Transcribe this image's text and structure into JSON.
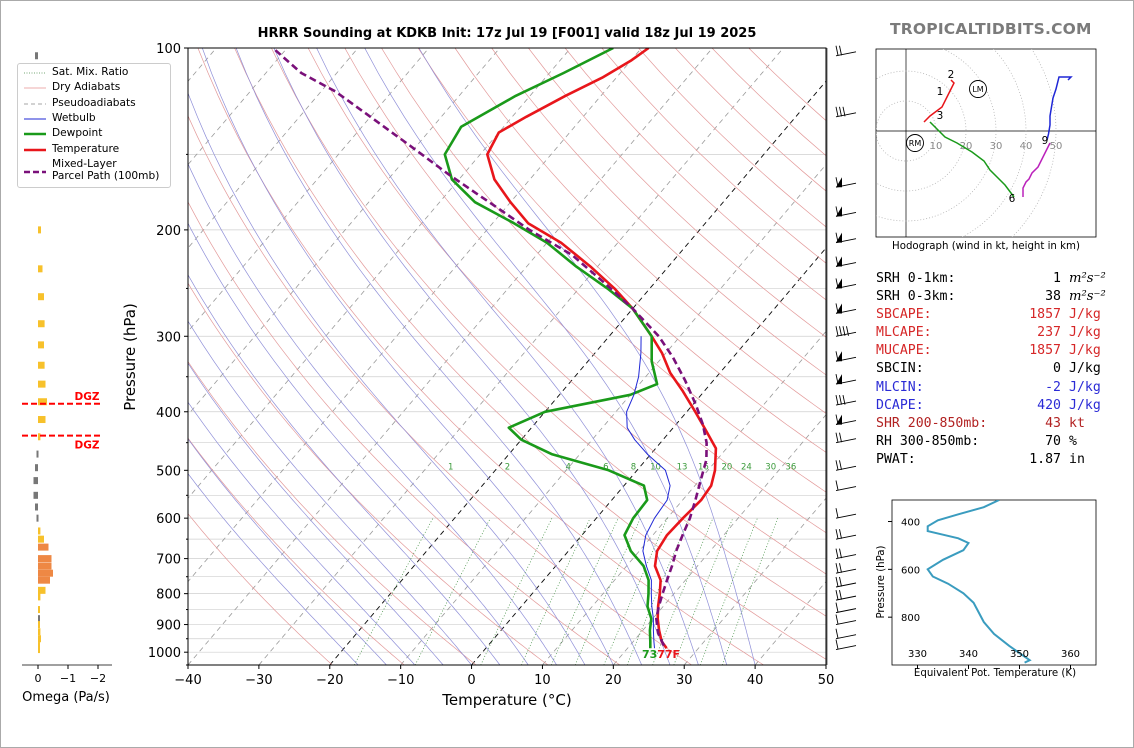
{
  "title": "HRRR Sounding at KDKB Init: 17z Jul 19 [F001] valid 18z Jul 19 2025",
  "watermark": "TROPICALTIDBITS.COM",
  "colors": {
    "temperature": "#e8161b",
    "dewpoint": "#1a9a1a",
    "wetbulb": "#1f27d6",
    "parcel": "#7a107a",
    "omega_pos": "#f7c12b",
    "omega_neg": "#777777",
    "omega_strong": "#ee8844",
    "dgz": "#ff0000",
    "theta_e": "#3a9cbf",
    "hodo_0_3": "#e8161b",
    "hodo_3_6": "#1a9a1a",
    "hodo_6_9": "#1f27d6",
    "hodo_9_12": "#bb22bb"
  },
  "skewt": {
    "xlabel": "Temperature (°C)",
    "ylabel": "Pressure (hPa)",
    "x_ticks": [
      -40,
      -30,
      -20,
      -10,
      0,
      10,
      20,
      30,
      40,
      50
    ],
    "x_tick_labels": [
      "−40",
      "−30",
      "−20",
      "−10",
      "0",
      "10",
      "20",
      "30",
      "40",
      "50"
    ],
    "y_ticks": [
      100,
      200,
      300,
      400,
      500,
      600,
      700,
      800,
      900,
      1000
    ],
    "y_tick_labels": [
      "100",
      "200",
      "300",
      "400",
      "500",
      "600",
      "700",
      "800",
      "900",
      "1000"
    ],
    "mixing_ratio_labels": [
      "1",
      "2",
      "4",
      "6",
      "8",
      "10",
      "13",
      "16",
      "20",
      "24",
      "30",
      "36"
    ],
    "surface_label": "73 77F"
  },
  "legend": {
    "items": [
      "Sat. Mix. Ratio",
      "Dry Adiabats",
      "Pseudoadiabats",
      "Wetbulb",
      "Dewpoint",
      "Temperature",
      "Mixed-Layer\nParcel Path (100mb)"
    ]
  },
  "omega": {
    "xlabel": "Omega (Pa/s)",
    "x_tick_labels": [
      "0",
      "−1",
      "−2"
    ],
    "dgz_label_top": "DGZ",
    "dgz_label_bottom": "DGZ"
  },
  "hodograph": {
    "caption": "Hodograph (wind in kt, height in km)",
    "ring_labels": [
      "10",
      "20",
      "30",
      "40",
      "50"
    ],
    "height_labels": [
      "1",
      "2",
      "3",
      "6",
      "9"
    ],
    "storm_motion_labels": [
      "RM",
      "LM"
    ]
  },
  "indices": [
    {
      "label": "SRH 0-1km:",
      "value": "1",
      "unit": "m²s⁻²",
      "color": "#000000"
    },
    {
      "label": "SRH 0-3km:",
      "value": "38",
      "unit": "m²s⁻²",
      "color": "#000000"
    },
    {
      "label": "SBCAPE:",
      "value": "1857",
      "unit": "J/kg",
      "color": "#d62728"
    },
    {
      "label": "MLCAPE:",
      "value": "237",
      "unit": "J/kg",
      "color": "#d62728"
    },
    {
      "label": "MUCAPE:",
      "value": "1857",
      "unit": "J/kg",
      "color": "#d62728"
    },
    {
      "label": "SBCIN:",
      "value": "0",
      "unit": "J/kg",
      "color": "#000000"
    },
    {
      "label": "MLCIN:",
      "value": "-2",
      "unit": "J/kg",
      "color": "#2b2bd6"
    },
    {
      "label": "DCAPE:",
      "value": "420",
      "unit": "J/kg",
      "color": "#2b2bd6"
    },
    {
      "label": "SHR 200-850mb:",
      "value": "43",
      "unit": "kt",
      "color": "#b22222"
    },
    {
      "label": "RH 300-850mb:",
      "value": "70",
      "unit": "%",
      "color": "#000000"
    },
    {
      "label": "PWAT:",
      "value": "1.87",
      "unit": "in",
      "color": "#000000"
    }
  ],
  "theta_e_panel": {
    "xlabel": "Equivalent Pot. Temperature (K)",
    "ylabel": "Pressure (hPa)",
    "x_tick_labels": [
      "330",
      "340",
      "350",
      "360"
    ],
    "y_tick_labels": [
      "400",
      "600",
      "800"
    ]
  },
  "chart_data": [
    {
      "type": "line",
      "name": "skew-t",
      "title": "HRRR Sounding at KDKB Init: 17z Jul 19 [F001] valid 18z Jul 19 2025",
      "xlabel": "Temperature (°C)",
      "ylabel": "Pressure (hPa)",
      "xlim": [
        -40,
        50
      ],
      "ylim": [
        1050,
        100
      ],
      "y_scale": "log",
      "series": [
        {
          "name": "Temperature",
          "points": [
            [
              25.5,
              985
            ],
            [
              24,
              960
            ],
            [
              22.3,
              920
            ],
            [
              20.7,
              880
            ],
            [
              19.3,
              840
            ],
            [
              18,
              800
            ],
            [
              16.5,
              760
            ],
            [
              14,
              720
            ],
            [
              12.5,
              680
            ],
            [
              12,
              640
            ],
            [
              12.2,
              600
            ],
            [
              12.6,
              560
            ],
            [
              12.3,
              530
            ],
            [
              11,
              500
            ],
            [
              8.5,
              460
            ],
            [
              5,
              430
            ],
            [
              1.2,
              400
            ],
            [
              -3,
              370
            ],
            [
              -7,
              345
            ],
            [
              -10.5,
              320
            ],
            [
              -14,
              300
            ],
            [
              -20,
              270
            ],
            [
              -25,
              250
            ],
            [
              -31,
              230
            ],
            [
              -38,
              210
            ],
            [
              -45,
              195
            ],
            [
              -50,
              180
            ],
            [
              -55,
              165
            ],
            [
              -59,
              150
            ],
            [
              -60,
              138
            ],
            [
              -58,
              130
            ],
            [
              -55,
              120
            ],
            [
              -52,
              112
            ],
            [
              -50,
              105
            ],
            [
              -49,
              100
            ]
          ]
        },
        {
          "name": "Dewpoint",
          "points": [
            [
              23.2,
              985
            ],
            [
              22.4,
              960
            ],
            [
              21,
              920
            ],
            [
              19.8,
              880
            ],
            [
              17.8,
              840
            ],
            [
              16.4,
              800
            ],
            [
              14.8,
              760
            ],
            [
              12.4,
              720
            ],
            [
              8.8,
              680
            ],
            [
              6,
              640
            ],
            [
              5.2,
              600
            ],
            [
              5,
              560
            ],
            [
              2.8,
              530
            ],
            [
              -4,
              500
            ],
            [
              -14,
              470
            ],
            [
              -20,
              445
            ],
            [
              -23.2,
              425
            ],
            [
              -20,
              400
            ],
            [
              -10,
              375
            ],
            [
              -7.5,
              360
            ],
            [
              -11,
              330
            ],
            [
              -14,
              300
            ],
            [
              -20,
              270
            ],
            [
              -26,
              250
            ],
            [
              -33,
              230
            ],
            [
              -40,
              210
            ],
            [
              -47,
              195
            ],
            [
              -55,
              180
            ],
            [
              -61,
              165
            ],
            [
              -65,
              150
            ],
            [
              -66,
              135
            ],
            [
              -62,
              120
            ],
            [
              -58,
              110
            ],
            [
              -54,
              100
            ]
          ]
        },
        {
          "name": "Wetbulb",
          "points": [
            [
              23.8,
              985
            ],
            [
              22.9,
              960
            ],
            [
              21.5,
              920
            ],
            [
              20.1,
              880
            ],
            [
              18.4,
              840
            ],
            [
              16.8,
              800
            ],
            [
              15.2,
              760
            ],
            [
              12.8,
              720
            ],
            [
              10.5,
              680
            ],
            [
              9,
              640
            ],
            [
              8.2,
              600
            ],
            [
              7.8,
              560
            ],
            [
              6.5,
              530
            ],
            [
              4,
              500
            ],
            [
              -0.5,
              470
            ],
            [
              -4,
              445
            ],
            [
              -6.5,
              425
            ],
            [
              -8.5,
              400
            ],
            [
              -9.5,
              375
            ],
            [
              -11,
              350
            ],
            [
              -13.5,
              320
            ],
            [
              -15.5,
              300
            ]
          ]
        },
        {
          "name": "Mixed-Layer Parcel Path (100mb)",
          "points": [
            [
              24.8,
              975
            ],
            [
              22.5,
              930
            ],
            [
              20.5,
              880
            ],
            [
              19.4,
              840
            ],
            [
              18.4,
              800
            ],
            [
              17.4,
              760
            ],
            [
              16.4,
              720
            ],
            [
              15.2,
              680
            ],
            [
              14.2,
              640
            ],
            [
              13.2,
              600
            ],
            [
              11.8,
              560
            ],
            [
              10.2,
              520
            ],
            [
              8.5,
              480
            ],
            [
              6.5,
              450
            ],
            [
              3.8,
              420
            ],
            [
              0.5,
              390
            ],
            [
              -4,
              355
            ],
            [
              -8.5,
              325
            ],
            [
              -13,
              300
            ],
            [
              -20,
              270
            ],
            [
              -27,
              245
            ],
            [
              -35,
              220
            ],
            [
              -44,
              200
            ],
            [
              -53,
              180
            ],
            [
              -62,
              162
            ],
            [
              -71,
              145
            ],
            [
              -80,
              130
            ],
            [
              -88,
              118
            ],
            [
              -95,
              110
            ],
            [
              -102,
              100
            ]
          ]
        }
      ]
    },
    {
      "type": "bar",
      "name": "omega",
      "xlabel": "Omega (Pa/s)",
      "xlim": [
        0.5,
        -2.0
      ],
      "dgz_pressures_hPa": [
        388,
        438
      ],
      "pressure_hPa": [
        103,
        200,
        232,
        258,
        286,
        310,
        335,
        360,
        385,
        412,
        440,
        470,
        495,
        520,
        550,
        575,
        600,
        630,
        650,
        670,
        700,
        720,
        740,
        760,
        790,
        810,
        850,
        880,
        900,
        925,
        950,
        975,
        990
      ],
      "values": [
        0.1,
        -0.1,
        -0.15,
        -0.2,
        -0.22,
        -0.2,
        -0.22,
        -0.25,
        -0.3,
        -0.25,
        -0.08,
        0.05,
        0.1,
        0.15,
        0.15,
        0.1,
        0.05,
        -0.08,
        -0.2,
        -0.35,
        -0.45,
        -0.45,
        -0.5,
        -0.4,
        -0.25,
        -0.08,
        -0.02,
        0.0,
        -0.05,
        -0.08,
        -0.1,
        -0.06,
        -0.02
      ]
    },
    {
      "type": "line",
      "name": "hodograph",
      "caption": "Hodograph (wind in kt, height in km)",
      "rings_kt": [
        10,
        20,
        30,
        40,
        50
      ],
      "series": [
        {
          "name": "0-3 km",
          "u": [
            6,
            8,
            12,
            13,
            15,
            16,
            15
          ],
          "v": [
            3,
            5,
            8,
            10,
            14,
            16,
            17
          ]
        },
        {
          "name": "3-6 km",
          "u": [
            8,
            9,
            10,
            13,
            17,
            22,
            26,
            28,
            30,
            33,
            36
          ],
          "v": [
            3,
            2,
            1,
            -2,
            -4,
            -7,
            -10,
            -13,
            -15,
            -18,
            -22
          ]
        },
        {
          "name": "6-9 km",
          "u": [
            47,
            47.5,
            48,
            48,
            48.5,
            49,
            50,
            51,
            53,
            55,
            54
          ],
          "v": [
            -3,
            -1,
            2,
            5,
            8,
            11,
            14,
            18,
            18,
            18,
            17
          ]
        },
        {
          "name": "9-12 km",
          "u": [
            48,
            46,
            44,
            42,
            41,
            40,
            39,
            39
          ],
          "v": [
            -4,
            -8,
            -12,
            -14,
            -16,
            -17,
            -19,
            -22
          ]
        }
      ],
      "storm_motion": {
        "RM": [
          3,
          -4
        ],
        "LM": [
          24,
          14
        ]
      }
    },
    {
      "type": "line",
      "name": "theta-e",
      "xlabel": "Equivalent Pot. Temperature (K)",
      "ylabel": "Pressure (hPa)",
      "xlim": [
        325,
        365
      ],
      "ylim": [
        1000,
        310
      ],
      "x": [
        346,
        343,
        338,
        334,
        332,
        332,
        335,
        338,
        340,
        339,
        335,
        332,
        333,
        336,
        339,
        341,
        342,
        343,
        345,
        348,
        352,
        351
      ],
      "pressure_hPa": [
        310,
        340,
        370,
        395,
        420,
        440,
        455,
        470,
        490,
        520,
        560,
        600,
        630,
        660,
        700,
        740,
        780,
        820,
        870,
        920,
        980,
        990
      ]
    }
  ]
}
